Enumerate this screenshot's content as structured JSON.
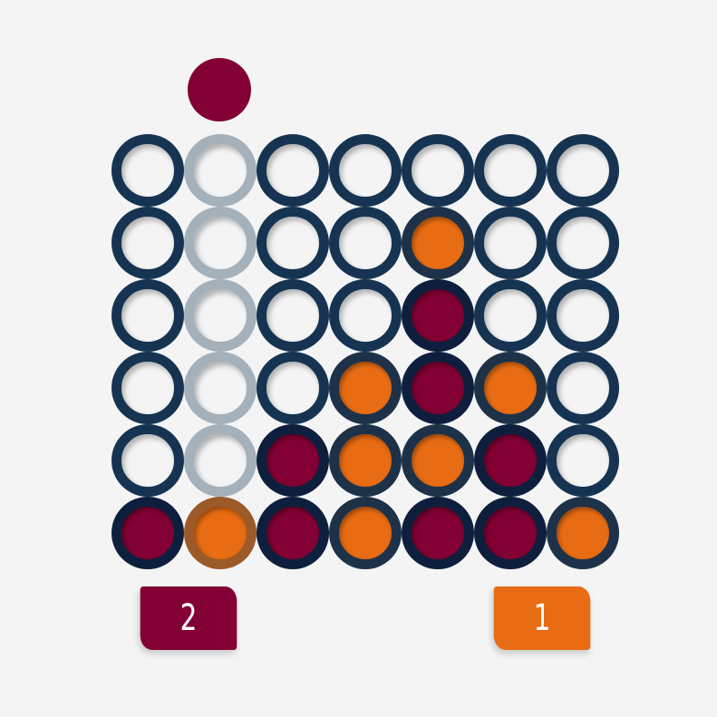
{
  "colors": {
    "background": "#f4f4f5",
    "player1": "#820033",
    "player2": "#e86c13",
    "ring": "#163452",
    "ring_player1": "#0e1f3d",
    "ring_player2": "#1d3248",
    "ring_hover": "#a4b0ba",
    "ring_hover_player2": "#9b5a28"
  },
  "current_player": "player1",
  "hover_column": 1,
  "scores": {
    "player1": "2",
    "player2": "1"
  },
  "board": [
    [
      "empty",
      "empty",
      "empty",
      "empty",
      "empty",
      "empty",
      "empty"
    ],
    [
      "empty",
      "empty",
      "empty",
      "empty",
      "player2",
      "empty",
      "empty"
    ],
    [
      "empty",
      "empty",
      "empty",
      "empty",
      "player1",
      "empty",
      "empty"
    ],
    [
      "empty",
      "empty",
      "empty",
      "player2",
      "player1",
      "player2",
      "empty"
    ],
    [
      "empty",
      "empty",
      "player1",
      "player2",
      "player2",
      "player1",
      "empty"
    ],
    [
      "player1",
      "player2",
      "player1",
      "player2",
      "player1",
      "player1",
      "player2"
    ]
  ]
}
